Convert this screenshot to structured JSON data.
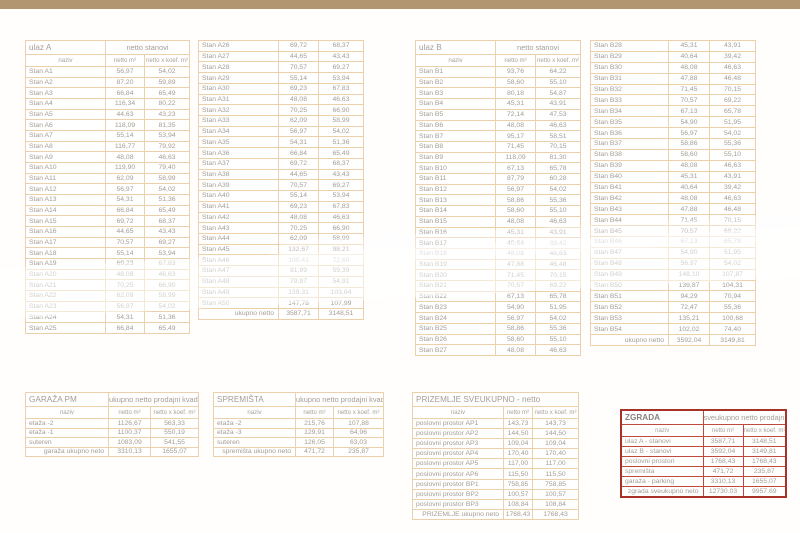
{
  "colors": {
    "top_bar": "#b29571",
    "table_border": "#dcbd96",
    "cell_border": "#ecd0ab",
    "text": "#a49d94",
    "accent_red": "#a93226"
  },
  "columns": [
    "naziv",
    "netto m²",
    "netto x koef. m²"
  ],
  "stan_tables": [
    {
      "id": "ulaz-a-1",
      "title": "ulaz A",
      "subtitle": "netto stanovi",
      "rows": [
        [
          "Stan A1",
          "56,97",
          "54,02"
        ],
        [
          "Stan A2",
          "87,20",
          "59,89"
        ],
        [
          "Stan A3",
          "66,84",
          "65,49"
        ],
        [
          "Stan A4",
          "116,34",
          "80,22"
        ],
        [
          "Stan A5",
          "44,63",
          "43,23"
        ],
        [
          "Stan A6",
          "118,09",
          "81,35"
        ],
        [
          "Stan A7",
          "55,14",
          "53,94"
        ],
        [
          "Stan A8",
          "116,77",
          "79,92"
        ],
        [
          "Stan A9",
          "48,08",
          "46,63"
        ],
        [
          "Stan A10",
          "119,90",
          "79,40"
        ],
        [
          "Stan A11",
          "62,09",
          "58,99"
        ],
        [
          "Stan A12",
          "56,97",
          "54,02"
        ],
        [
          "Stan A13",
          "54,31",
          "51,36"
        ],
        [
          "Stan A14",
          "66,84",
          "65,49"
        ],
        [
          "Stan A15",
          "69,72",
          "68,37"
        ],
        [
          "Stan A16",
          "44,65",
          "43,43"
        ],
        [
          "Stan A17",
          "70,57",
          "69,27"
        ],
        [
          "Stan A18",
          "55,14",
          "53,94"
        ],
        [
          "Stan A19",
          "69,23",
          "67,83"
        ],
        [
          "Stan A20",
          "48,08",
          "46,63"
        ],
        [
          "Stan A21",
          "70,25",
          "66,90"
        ],
        [
          "Stan A22",
          "62,09",
          "58,99"
        ],
        [
          "Stan A23",
          "56,97",
          "54,02"
        ],
        [
          "Stan A24",
          "54,31",
          "51,36"
        ],
        [
          "Stan A25",
          "66,84",
          "65,49"
        ]
      ]
    },
    {
      "id": "ulaz-a-2",
      "rows": [
        [
          "Stan A26",
          "69,72",
          "68,37"
        ],
        [
          "Stan A27",
          "44,65",
          "43,43"
        ],
        [
          "Stan A28",
          "70,57",
          "69,27"
        ],
        [
          "Stan A29",
          "55,14",
          "53,94"
        ],
        [
          "Stan A30",
          "69,23",
          "67,83"
        ],
        [
          "Stan A31",
          "48,08",
          "46,63"
        ],
        [
          "Stan A32",
          "70,25",
          "66,90"
        ],
        [
          "Stan A33",
          "62,09",
          "58,99"
        ],
        [
          "Stan A34",
          "56,97",
          "54,02"
        ],
        [
          "Stan A35",
          "54,31",
          "51,36"
        ],
        [
          "Stan A36",
          "66,84",
          "65,49"
        ],
        [
          "Stan A37",
          "69,72",
          "68,37"
        ],
        [
          "Stan A38",
          "44,65",
          "43,43"
        ],
        [
          "Stan A39",
          "70,57",
          "69,27"
        ],
        [
          "Stan A40",
          "55,14",
          "53,94"
        ],
        [
          "Stan A41",
          "69,23",
          "67,83"
        ],
        [
          "Stan A42",
          "48,08",
          "46,63"
        ],
        [
          "Stan A43",
          "70,25",
          "66,90"
        ],
        [
          "Stan A44",
          "62,09",
          "58,99"
        ],
        [
          "Stan A45",
          "132,67",
          "98,21"
        ],
        [
          "Stan A46",
          "100,41",
          "72,60"
        ],
        [
          "Stan A47",
          "91,99",
          "59,39"
        ],
        [
          "Stan A48",
          "79,97",
          "54,91"
        ],
        [
          "Stan A49",
          "139,31",
          "103,64"
        ],
        [
          "Stan A50",
          "147,78",
          "107,99"
        ]
      ],
      "total": [
        "ukupno netto",
        "3587,71",
        "3148,51"
      ]
    },
    {
      "id": "ulaz-b-1",
      "title": "ulaz B",
      "subtitle": "netto stanovi",
      "rows": [
        [
          "Stan B1",
          "93,76",
          "64,22"
        ],
        [
          "Stan B2",
          "58,60",
          "55,10"
        ],
        [
          "Stan B3",
          "80,18",
          "54,87"
        ],
        [
          "Stan B4",
          "45,31",
          "43,91"
        ],
        [
          "Stan B5",
          "72,14",
          "47,53"
        ],
        [
          "Stan B6",
          "48,08",
          "46,63"
        ],
        [
          "Stan B7",
          "95,17",
          "58,51"
        ],
        [
          "Stan B8",
          "71,45",
          "70,15"
        ],
        [
          "Stan B9",
          "118,09",
          "81,30"
        ],
        [
          "Stan B10",
          "67,13",
          "65,78"
        ],
        [
          "Stan B11",
          "87,79",
          "60,28"
        ],
        [
          "Stan B12",
          "56,97",
          "54,02"
        ],
        [
          "Stan B13",
          "58,86",
          "55,36"
        ],
        [
          "Stan B14",
          "58,60",
          "55,10"
        ],
        [
          "Stan B15",
          "48,08",
          "46,63"
        ],
        [
          "Stan B16",
          "45,31",
          "43,91"
        ],
        [
          "Stan B17",
          "40,64",
          "39,42"
        ],
        [
          "Stan B18",
          "48,08",
          "46,63"
        ],
        [
          "Stan B19",
          "47,88",
          "46,48"
        ],
        [
          "Stan B20",
          "71,45",
          "70,15"
        ],
        [
          "Stan B21",
          "70,57",
          "69,22"
        ],
        [
          "Stan B22",
          "67,13",
          "65,78"
        ],
        [
          "Stan B23",
          "54,90",
          "51,95"
        ],
        [
          "Stan B24",
          "56,97",
          "54,02"
        ],
        [
          "Stan B25",
          "58,86",
          "55,36"
        ],
        [
          "Stan B26",
          "58,60",
          "55,10"
        ],
        [
          "Stan B27",
          "48,08",
          "46,63"
        ]
      ]
    },
    {
      "id": "ulaz-b-2",
      "rows": [
        [
          "Stan B28",
          "45,31",
          "43,91"
        ],
        [
          "Stan B29",
          "40,64",
          "39,42"
        ],
        [
          "Stan B30",
          "48,08",
          "46,63"
        ],
        [
          "Stan B31",
          "47,88",
          "46,48"
        ],
        [
          "Stan B32",
          "71,45",
          "70,15"
        ],
        [
          "Stan B33",
          "70,57",
          "69,22"
        ],
        [
          "Stan B34",
          "67,13",
          "65,78"
        ],
        [
          "Stan B35",
          "54,90",
          "51,95"
        ],
        [
          "Stan B36",
          "56,97",
          "54,02"
        ],
        [
          "Stan B37",
          "58,86",
          "55,36"
        ],
        [
          "Stan B38",
          "58,60",
          "55,10"
        ],
        [
          "Stan B39",
          "48,08",
          "46,63"
        ],
        [
          "Stan B40",
          "45,31",
          "43,91"
        ],
        [
          "Stan B41",
          "40,64",
          "39,42"
        ],
        [
          "Stan B42",
          "48,08",
          "46,63"
        ],
        [
          "Stan B43",
          "47,88",
          "46,48"
        ],
        [
          "Stan B44",
          "71,45",
          "70,15"
        ],
        [
          "Stan B45",
          "70,57",
          "69,22"
        ],
        [
          "Stan B46",
          "67,13",
          "65,78"
        ],
        [
          "Stan B47",
          "54,90",
          "51,95"
        ],
        [
          "Stan B48",
          "56,97",
          "54,02"
        ],
        [
          "Stan B49",
          "148,10",
          "107,87"
        ],
        [
          "Stan B50",
          "139,87",
          "104,31"
        ],
        [
          "Stan B51",
          "94,29",
          "70,94"
        ],
        [
          "Stan B52",
          "72,47",
          "55,36"
        ],
        [
          "Stan B53",
          "135,21",
          "100,68"
        ],
        [
          "Stan B54",
          "102,02",
          "74,40"
        ]
      ],
      "total": [
        "ukupno netto",
        "3592,04",
        "3149,81"
      ]
    }
  ],
  "summary_tables": [
    {
      "id": "garaza",
      "title": "GARAŽA PM",
      "subtitle": "ukupno netto prodajni kvadrati",
      "rows": [
        [
          "etaža -2",
          "1126,67",
          "563,33"
        ],
        [
          "etaža -1",
          "1100,37",
          "550,19"
        ],
        [
          "suteren",
          "1083,09",
          "541,55"
        ]
      ],
      "total": [
        "garaža ukupno neto",
        "3310,13",
        "1655,07"
      ]
    },
    {
      "id": "spremista",
      "title": "SPREMIŠTA",
      "subtitle": "ukupno netto prodajni kvadrati",
      "rows": [
        [
          "etaža -2",
          "215,76",
          "107,88"
        ],
        [
          "etaža -3",
          "129,91",
          "64,96"
        ],
        [
          "suteren",
          "126,05",
          "63,03"
        ]
      ],
      "total": [
        "spremišta ukupno neto",
        "471,72",
        "235,87"
      ]
    },
    {
      "id": "prizemlje",
      "title": "PRIZEMLJE SVEUKUPNO - netto",
      "subtitle": "",
      "rows": [
        [
          "poslovni prostor AP1",
          "143,73",
          "143,73"
        ],
        [
          "poslovni prostor AP2",
          "144,50",
          "144,50"
        ],
        [
          "poslovni prostor AP3",
          "109,04",
          "109,04"
        ],
        [
          "poslovni prostor AP4",
          "170,40",
          "170,40"
        ],
        [
          "poslovni prostor AP5",
          "117,00",
          "117,00"
        ],
        [
          "poslovni prostor AP6",
          "115,50",
          "115,50"
        ],
        [
          "poslovni prostor BP1",
          "758,85",
          "758,85"
        ],
        [
          "poslovni prostor BP2",
          "100,57",
          "100,57"
        ],
        [
          "poslovni prostor BP3",
          "108,84",
          "108,84"
        ]
      ],
      "total": [
        "PRIZEMLJE ukupno neto",
        "1768,43",
        "1768,43"
      ]
    },
    {
      "id": "zgrada",
      "title": "ZGRADA",
      "subtitle": "sveukupno netto prodajni kvadrati",
      "rows": [
        [
          "ulaz A - stanovi",
          "3587,71",
          "3148,51"
        ],
        [
          "ulaz B - stanovi",
          "3592,04",
          "3149,81"
        ],
        [
          "poslovni prostori",
          "1768,43",
          "1768,43"
        ],
        [
          "spremišta",
          "471,72",
          "235,87"
        ],
        [
          "garaža - parking",
          "3310,13",
          "1655,07"
        ]
      ],
      "total": [
        "zgrada sveukupno neto",
        "12730.03",
        "9957.69"
      ]
    }
  ]
}
